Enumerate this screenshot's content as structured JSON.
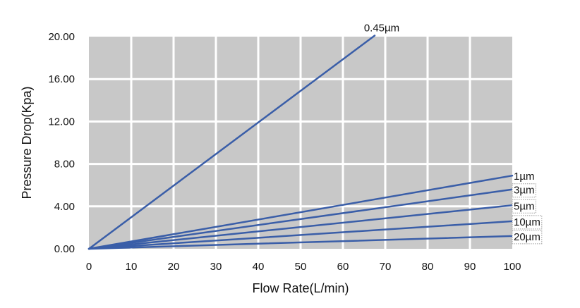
{
  "chart_data": {
    "type": "line",
    "title": "",
    "xlabel": "Flow Rate(L/min)",
    "ylabel": "Pressure Drop(Kpa)",
    "xlim": [
      0,
      100
    ],
    "ylim": [
      0,
      20
    ],
    "x_ticks": [
      "0",
      "10",
      "20",
      "30",
      "40",
      "50",
      "60",
      "70",
      "80",
      "90",
      "100"
    ],
    "y_ticks": [
      "0.00",
      "4.00",
      "8.00",
      "12.00",
      "16.00",
      "20.00"
    ],
    "grid": true,
    "plot_background": "#c8c8c8",
    "grid_color": "#ffffff",
    "line_color": "#3a5ea8",
    "series": [
      {
        "name": "0.45µm",
        "x": [
          0,
          67.5
        ],
        "y": [
          0,
          20.1
        ]
      },
      {
        "name": "1µm",
        "x": [
          0,
          100
        ],
        "y": [
          0,
          6.9
        ]
      },
      {
        "name": "3µm",
        "x": [
          0,
          100
        ],
        "y": [
          0,
          5.6
        ]
      },
      {
        "name": "5µm",
        "x": [
          0,
          100
        ],
        "y": [
          0,
          4.1
        ]
      },
      {
        "name": "10µm",
        "x": [
          0,
          100
        ],
        "y": [
          0,
          2.6
        ]
      },
      {
        "name": "20µm",
        "x": [
          0,
          100
        ],
        "y": [
          0,
          1.2
        ]
      }
    ]
  }
}
